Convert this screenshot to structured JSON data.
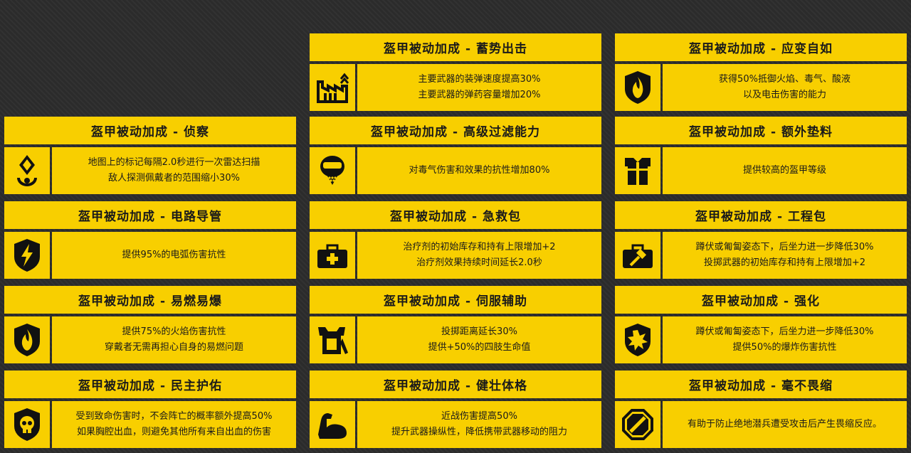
{
  "cards": {
    "recon": {
      "title": "盔甲被动加成 - 侦察",
      "icon": "radar-marker-icon",
      "lines": [
        "地图上的标记每隔2.0秒进行一次雷达扫描",
        "敌人探测佩戴者的范围缩小30%"
      ]
    },
    "electrical": {
      "title": "盔甲被动加成 - 电路导管",
      "icon": "lightning-shield-icon",
      "lines": [
        "提供95%的电弧伤害抗性"
      ]
    },
    "inflammable": {
      "title": "盔甲被动加成 - 易燃易爆",
      "icon": "flame-shield-icon",
      "lines": [
        "提供75%的火焰伤害抗性",
        "穿戴者无需再担心自身的易燃问题"
      ]
    },
    "democracy": {
      "title": "盔甲被动加成 - 民主护佑",
      "icon": "skull-shield-icon",
      "lines": [
        "受到致命伤害时，不会阵亡的概率额外提高50%",
        "如果胸腔出血，则避免其他所有来自出血的伤害"
      ]
    },
    "peak": {
      "title": "盔甲被动加成 - 蓄势出击",
      "icon": "ammo-crate-icon",
      "lines": [
        "主要武器的装弹速度提高30%",
        "主要武器的弹药容量增加20%"
      ]
    },
    "filter": {
      "title": "盔甲被动加成 - 高级过滤能力",
      "icon": "gas-mask-icon",
      "lines": [
        "对毒气伤害和效果的抗性增加80%"
      ]
    },
    "medkit": {
      "title": "盔甲被动加成 - 急救包",
      "icon": "medkit-icon",
      "lines": [
        "治疗剂的初始库存和持有上限增加+2",
        "治疗剂效果持续时间延长2.0秒"
      ]
    },
    "servo": {
      "title": "盔甲被动加成 - 伺服辅助",
      "icon": "servo-arm-icon",
      "lines": [
        "投掷距离延长30%",
        "提供+50%的四肢生命值"
      ]
    },
    "fortified_body": {
      "title": "盔甲被动加成 - 健壮体格",
      "icon": "flexed-arm-icon",
      "lines": [
        "近战伤害提高50%",
        "提升武器操纵性，降低携带武器移动的阻力"
      ]
    },
    "adaptive": {
      "title": "盔甲被动加成 - 应变自如",
      "icon": "fire-shield-icon",
      "lines": [
        "获得50%抵御火焰、毒气、酸液",
        "以及电击伤害的能力"
      ]
    },
    "padding": {
      "title": "盔甲被动加成 - 额外垫料",
      "icon": "armor-vest-icon",
      "lines": [
        "提供较高的盔甲等级"
      ]
    },
    "engineering": {
      "title": "盔甲被动加成 - 工程包",
      "icon": "toolbox-hammer-icon",
      "lines": [
        "蹲伏或匍匐姿态下，后坐力进一步降低30%",
        "投掷武器的初始库存和持有上限增加+2"
      ]
    },
    "fortified": {
      "title": "盔甲被动加成 - 强化",
      "icon": "explosion-shield-icon",
      "lines": [
        "蹲伏或匍匐姿态下，后坐力进一步降低30%",
        "提供50%的爆炸伤害抗性"
      ]
    },
    "unflinching": {
      "title": "盔甲被动加成 - 毫不畏缩",
      "icon": "no-entry-icon",
      "lines": [
        "有助于防止绝地潜兵遭受攻击后产生畏缩反应。"
      ]
    }
  }
}
